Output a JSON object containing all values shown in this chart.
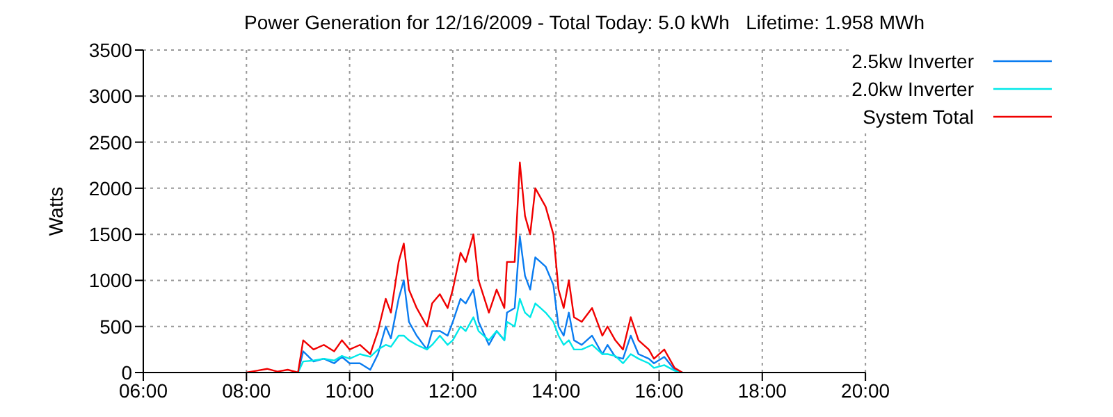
{
  "chart_data": {
    "type": "line",
    "title": "Power Generation for 12/16/2009 - Total Today: 5.0 kWh   Lifetime: 1.958 MWh",
    "ylabel": "Watts",
    "x": [
      8.0,
      8.2,
      8.4,
      8.6,
      8.8,
      9.0,
      9.1,
      9.3,
      9.5,
      9.7,
      9.85,
      10.0,
      10.2,
      10.4,
      10.55,
      10.7,
      10.8,
      10.95,
      11.05,
      11.15,
      11.3,
      11.5,
      11.6,
      11.75,
      11.9,
      12.0,
      12.15,
      12.25,
      12.4,
      12.5,
      12.7,
      12.85,
      13.0,
      13.05,
      13.2,
      13.3,
      13.4,
      13.5,
      13.6,
      13.7,
      13.8,
      13.95,
      14.05,
      14.15,
      14.25,
      14.35,
      14.5,
      14.7,
      14.9,
      15.0,
      15.15,
      15.3,
      15.45,
      15.6,
      15.8,
      15.9,
      16.1,
      16.3,
      16.45
    ],
    "series": [
      {
        "name": "2.5kw Inverter",
        "color": "#0a7cf0",
        "values": [
          null,
          null,
          null,
          null,
          null,
          0,
          230,
          120,
          150,
          100,
          170,
          100,
          100,
          30,
          200,
          500,
          370,
          800,
          1000,
          550,
          400,
          250,
          450,
          450,
          400,
          550,
          800,
          750,
          900,
          550,
          300,
          450,
          350,
          650,
          700,
          1480,
          1050,
          900,
          1250,
          1200,
          1150,
          950,
          500,
          400,
          650,
          350,
          300,
          400,
          200,
          300,
          170,
          150,
          400,
          200,
          150,
          100,
          170,
          30,
          0
        ]
      },
      {
        "name": "2.0kw Inverter",
        "color": "#00e8e8",
        "values": [
          null,
          null,
          null,
          null,
          null,
          0,
          120,
          130,
          150,
          130,
          180,
          150,
          200,
          170,
          250,
          300,
          280,
          400,
          400,
          350,
          300,
          250,
          300,
          400,
          300,
          350,
          500,
          450,
          600,
          450,
          350,
          450,
          350,
          550,
          500,
          800,
          650,
          600,
          750,
          700,
          650,
          550,
          400,
          300,
          350,
          250,
          250,
          300,
          200,
          200,
          180,
          100,
          200,
          150,
          100,
          50,
          80,
          20,
          0
        ]
      },
      {
        "name": "System Total",
        "color": "#f00000",
        "values": [
          0,
          20,
          40,
          10,
          30,
          0,
          350,
          250,
          300,
          230,
          350,
          250,
          300,
          200,
          450,
          800,
          650,
          1200,
          1400,
          900,
          700,
          500,
          750,
          850,
          700,
          900,
          1300,
          1200,
          1500,
          1000,
          650,
          900,
          700,
          1200,
          1200,
          2280,
          1700,
          1500,
          2000,
          1900,
          1800,
          1500,
          900,
          700,
          1000,
          600,
          550,
          700,
          400,
          500,
          350,
          250,
          600,
          350,
          250,
          150,
          250,
          50,
          0
        ]
      }
    ],
    "xlim": [
      6,
      20
    ],
    "xticks": [
      {
        "value": 6,
        "label": "06:00"
      },
      {
        "value": 8,
        "label": "08:00"
      },
      {
        "value": 10,
        "label": "10:00"
      },
      {
        "value": 12,
        "label": "12:00"
      },
      {
        "value": 14,
        "label": "14:00"
      },
      {
        "value": 16,
        "label": "16:00"
      },
      {
        "value": 18,
        "label": "18:00"
      },
      {
        "value": 20,
        "label": "20:00"
      }
    ],
    "ylim": [
      0,
      3500
    ],
    "yticks": [
      0,
      500,
      1000,
      1500,
      2000,
      2500,
      3000,
      3500
    ],
    "grid": true,
    "legend": "top right",
    "marker": "none",
    "line_style": "solid"
  }
}
